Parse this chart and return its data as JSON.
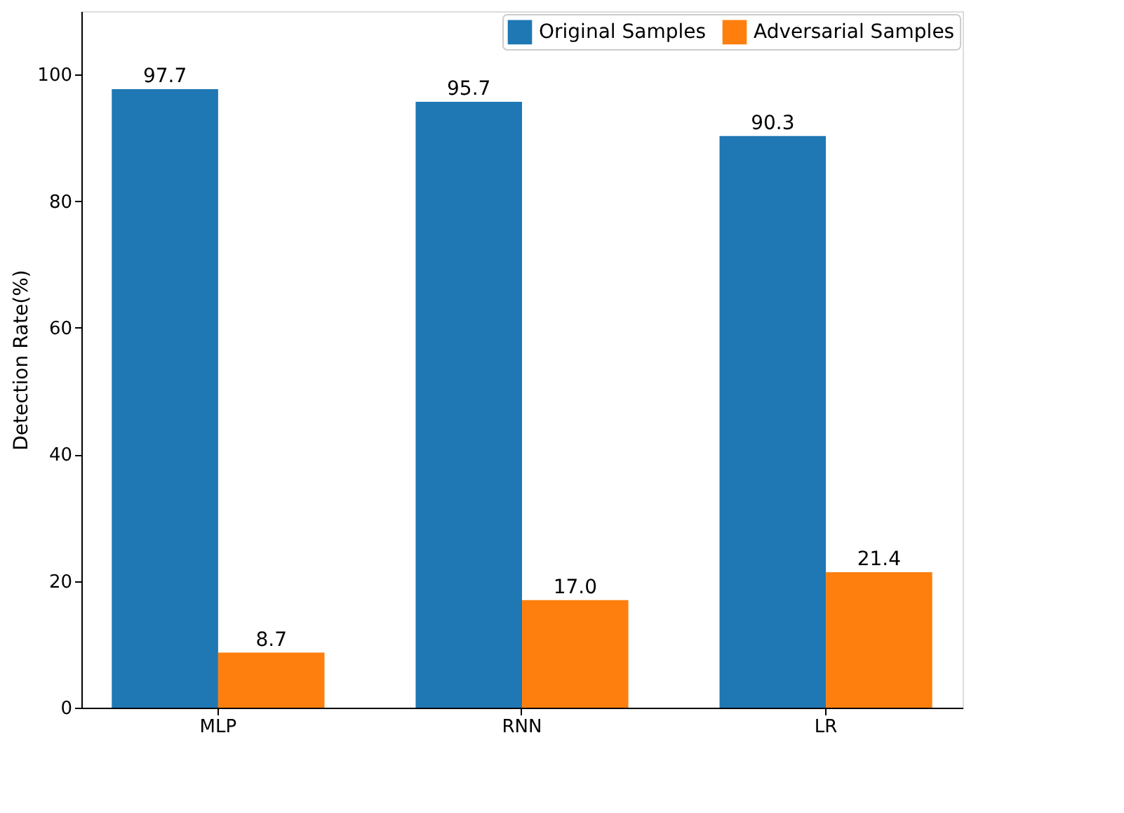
{
  "chart_data": {
    "type": "bar",
    "ylabel": "Detection Rate(%)",
    "categories": [
      "MLP",
      "RNN",
      "LR"
    ],
    "series": [
      {
        "name": "Original Samples",
        "color": "#1f77b4",
        "values": [
          97.7,
          95.7,
          90.3
        ],
        "value_labels": [
          "97.7",
          "95.7",
          "90.3"
        ]
      },
      {
        "name": "Adversarial Samples",
        "color": "#ff7f0e",
        "values": [
          8.7,
          17.0,
          21.4
        ],
        "value_labels": [
          "8.7",
          "17.0",
          "21.4"
        ]
      }
    ],
    "ylim": [
      0,
      110
    ],
    "yticks": [
      0,
      20,
      40,
      60,
      80,
      100
    ],
    "grid": false,
    "legend": "top right"
  }
}
